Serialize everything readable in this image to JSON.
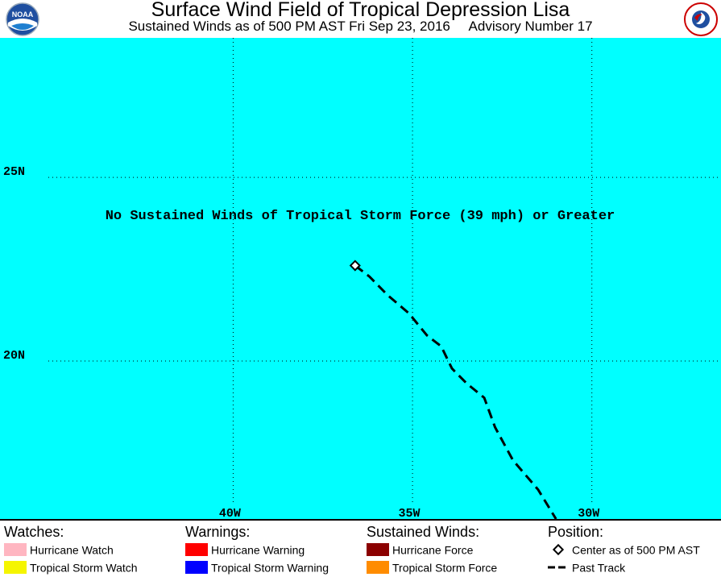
{
  "header": {
    "title": "Surface Wind Field of Tropical Depression Lisa",
    "subtitle": "Sustained Winds as of 500 PM AST Fri Sep 23, 2016     Advisory Number 17"
  },
  "logos": {
    "left": "noaa-logo",
    "right": "national-weather-service-logo",
    "left_text": "NOAA",
    "right_text": "NATIONAL WEATHER SERVICE"
  },
  "map": {
    "background_color": "#00ffff",
    "notice": "No Sustained Winds of Tropical Storm Force (39 mph) or Greater",
    "lat_range": [
      15.7,
      28.8
    ],
    "lon_range": [
      46.5,
      26.4
    ],
    "lat_labels": [
      {
        "value": 25,
        "label": "25N"
      },
      {
        "value": 20,
        "label": "20N"
      }
    ],
    "lon_labels": [
      {
        "value": 40,
        "label": "40W"
      },
      {
        "value": 35,
        "label": "35W"
      },
      {
        "value": 30,
        "label": "30W"
      }
    ],
    "center": {
      "lat": 22.6,
      "lon": 36.6
    },
    "past_track": [
      {
        "lat": 22.6,
        "lon": 36.6
      },
      {
        "lat": 22.3,
        "lon": 36.2
      },
      {
        "lat": 21.8,
        "lon": 35.7
      },
      {
        "lat": 21.3,
        "lon": 35.1
      },
      {
        "lat": 20.7,
        "lon": 34.6
      },
      {
        "lat": 20.4,
        "lon": 34.2
      },
      {
        "lat": 19.8,
        "lon": 33.9
      },
      {
        "lat": 19.4,
        "lon": 33.5
      },
      {
        "lat": 19.0,
        "lon": 33.0
      },
      {
        "lat": 18.2,
        "lon": 32.7
      },
      {
        "lat": 17.3,
        "lon": 32.2
      },
      {
        "lat": 16.5,
        "lon": 31.5
      },
      {
        "lat": 15.7,
        "lon": 31.0
      }
    ]
  },
  "legend": {
    "watches": {
      "heading": "Watches:",
      "items": [
        {
          "label": "Hurricane Watch",
          "color": "#ffb6c1"
        },
        {
          "label": "Tropical Storm Watch",
          "color": "#f5f500"
        }
      ]
    },
    "warnings": {
      "heading": "Warnings:",
      "items": [
        {
          "label": "Hurricane Warning",
          "color": "#ff0000"
        },
        {
          "label": "Tropical Storm Warning",
          "color": "#0000ff"
        }
      ]
    },
    "winds": {
      "heading": "Sustained Winds:",
      "items": [
        {
          "label": "Hurricane Force",
          "color": "#8b0000"
        },
        {
          "label": "Tropical Storm Force",
          "color": "#ff8c00"
        }
      ]
    },
    "position": {
      "heading": "Position:",
      "items": [
        {
          "label": "Center as of 500 PM AST",
          "symbol": "diamond-icon"
        },
        {
          "label": "Past Track",
          "symbol": "dashed-line-icon"
        }
      ]
    }
  }
}
